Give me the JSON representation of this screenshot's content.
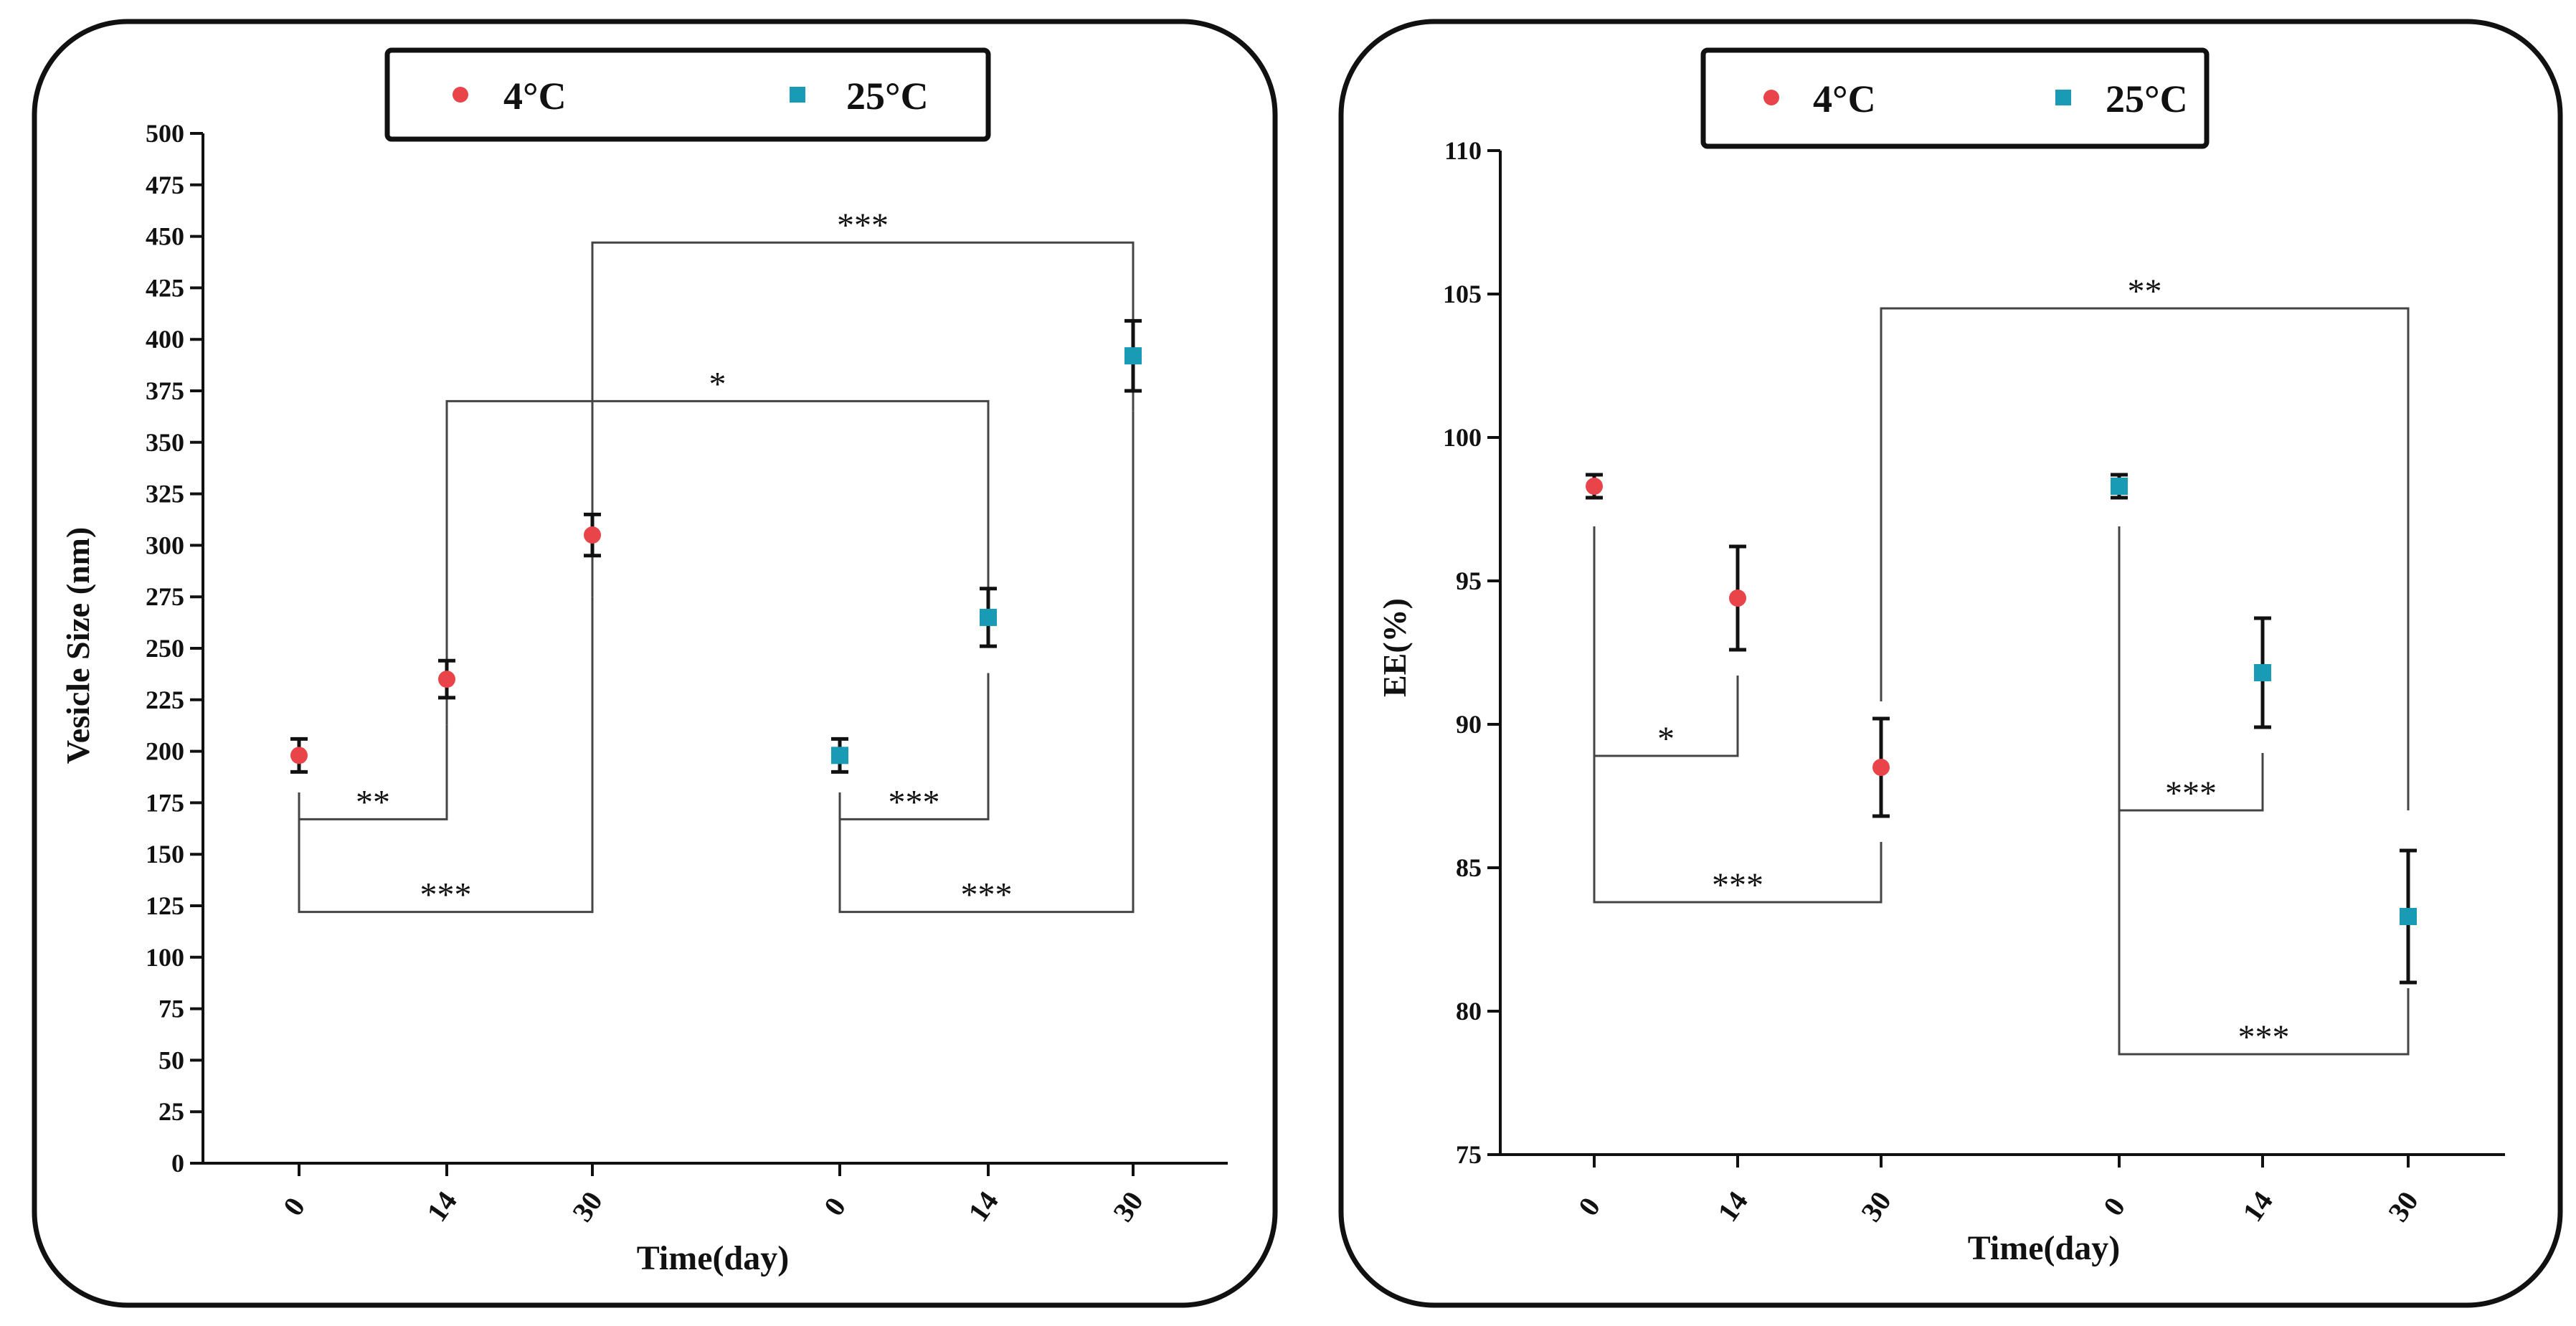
{
  "colors": {
    "cold": "#e8444a",
    "warm": "#1a9bb5",
    "ink": "#111111",
    "bracket": "#444444"
  },
  "chart_data": [
    {
      "type": "scatter",
      "title": "",
      "xlabel": "Time(day)",
      "ylabel": "Vesicle Size (nm)",
      "ylim": [
        0,
        500
      ],
      "ytick_step": 25,
      "categories": [
        "0",
        "14",
        "30",
        "0",
        "14",
        "30"
      ],
      "legend": [
        "4°C",
        "25°C"
      ],
      "legend_position": "top-center",
      "series": [
        {
          "name": "4°C",
          "marker": "circle",
          "x_index": [
            0,
            1,
            2
          ],
          "values": [
            198,
            235,
            305
          ],
          "errors": [
            8,
            9,
            10
          ]
        },
        {
          "name": "25°C",
          "marker": "square",
          "x_index": [
            3,
            4,
            5
          ],
          "values": [
            198,
            265,
            392
          ],
          "errors": [
            8,
            14,
            17
          ]
        }
      ],
      "annotations": [
        {
          "from": 0,
          "to": 1,
          "y": 167,
          "label": "**",
          "legs": [
            [
              180,
              167
            ],
            [
              213,
              167
            ]
          ]
        },
        {
          "from": 0,
          "to": 2,
          "y": 122,
          "label": "***",
          "legs": [
            [
              180,
              122
            ],
            [
              275,
              122
            ]
          ]
        },
        {
          "from": 1,
          "to": 4,
          "y": 370,
          "label": "*",
          "legs": [
            [
              213,
              370
            ],
            [
              253,
              370
            ]
          ]
        },
        {
          "from": 2,
          "to": 5,
          "y": 447,
          "label": "***",
          "legs": [
            [
              275,
              447
            ],
            [
              365,
              447
            ]
          ]
        },
        {
          "from": 3,
          "to": 4,
          "y": 167,
          "label": "***",
          "legs": [
            [
              180,
              167
            ],
            [
              238,
              167
            ]
          ]
        },
        {
          "from": 3,
          "to": 5,
          "y": 122,
          "label": "***",
          "legs": [
            [
              180,
              122
            ],
            [
              365,
              122
            ]
          ]
        }
      ]
    },
    {
      "type": "scatter",
      "title": "",
      "xlabel": "Time(day)",
      "ylabel": "EE(%)",
      "ylim": [
        75,
        110
      ],
      "ytick_step": 5,
      "categories": [
        "0",
        "14",
        "30",
        "0",
        "14",
        "30"
      ],
      "legend": [
        "4°C",
        "25°C"
      ],
      "legend_position": "top-center",
      "series": [
        {
          "name": "4°C",
          "marker": "circle",
          "x_index": [
            0,
            1,
            2
          ],
          "values": [
            98.3,
            94.4,
            88.5
          ],
          "errors": [
            0.4,
            1.8,
            1.7
          ]
        },
        {
          "name": "25°C",
          "marker": "square",
          "x_index": [
            3,
            4,
            5
          ],
          "values": [
            98.3,
            91.8,
            83.3
          ],
          "errors": [
            0.4,
            1.9,
            2.3
          ]
        }
      ],
      "annotations": [
        {
          "from": 0,
          "to": 1,
          "y": 88.9,
          "label": "*",
          "legs": [
            [
              96.9,
              88.9
            ],
            [
              91.7,
              88.9
            ]
          ]
        },
        {
          "from": 0,
          "to": 2,
          "y": 83.8,
          "label": "***",
          "legs": [
            [
              96.9,
              83.8
            ],
            [
              85.9,
              83.8
            ]
          ]
        },
        {
          "from": 2,
          "to": 5,
          "y": 104.5,
          "label": "**",
          "legs": [
            [
              90.8,
              104.5
            ],
            [
              87.0,
              104.5
            ]
          ]
        },
        {
          "from": 3,
          "to": 4,
          "y": 87.0,
          "label": "***",
          "legs": [
            [
              96.9,
              87.0
            ],
            [
              89.0,
              87.0
            ]
          ]
        },
        {
          "from": 3,
          "to": 5,
          "y": 78.5,
          "label": "***",
          "legs": [
            [
              96.9,
              78.5
            ],
            [
              80.8,
              78.5
            ]
          ]
        }
      ]
    }
  ]
}
